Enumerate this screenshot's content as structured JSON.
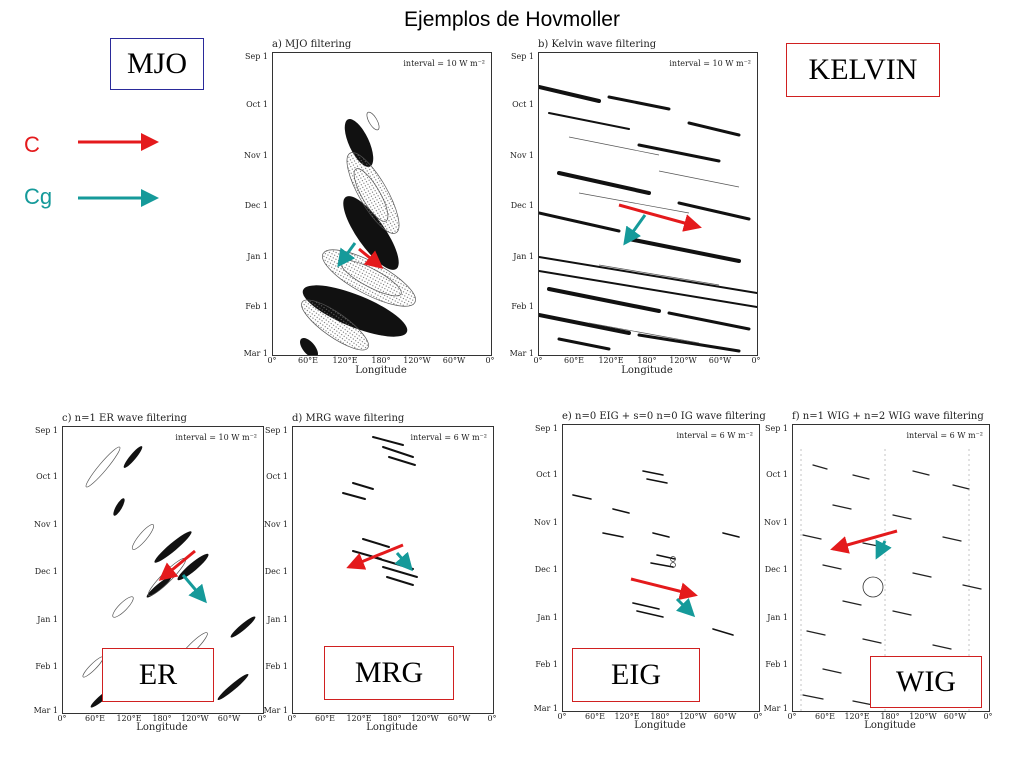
{
  "title": "Ejemplos de Hovmoller",
  "legend": {
    "c_label": "C",
    "c_color": "#e41a1c",
    "cg_label": "Cg",
    "cg_color": "#159a9a"
  },
  "tags": {
    "mjo": "MJO",
    "kelvin": "KELVIN",
    "er": "ER",
    "mrg": "MRG",
    "eig": "EIG",
    "wig": "WIG"
  },
  "x_ticks": [
    "0°",
    "60°E",
    "120°E",
    "180°",
    "120°W",
    "60°W",
    "0°"
  ],
  "y_ticks": [
    "Sep 1",
    "Oct 1",
    "Nov 1",
    "Dec 1",
    "Jan 1",
    "Feb 1",
    "Mar 1"
  ],
  "xlabel": "Longitude",
  "panels": {
    "a": {
      "title": "a) MJO filtering",
      "interval": "interval = 10 W m⁻²"
    },
    "b": {
      "title": "b) Kelvin wave filtering",
      "interval": "interval = 10 W m⁻²"
    },
    "c": {
      "title": "c) n=1 ER wave filtering",
      "interval": "interval = 10 W m⁻²"
    },
    "d": {
      "title": "d) MRG wave filtering",
      "interval": "interval = 6 W m⁻²"
    },
    "e": {
      "title": "e) n=0 EIG + s=0 n=0 IG wave filtering",
      "interval": "interval = 6 W m⁻²"
    },
    "f": {
      "title": "f) n=1 WIG + n=2 WIG wave filtering",
      "interval": "interval = 6 W m⁻²"
    }
  }
}
